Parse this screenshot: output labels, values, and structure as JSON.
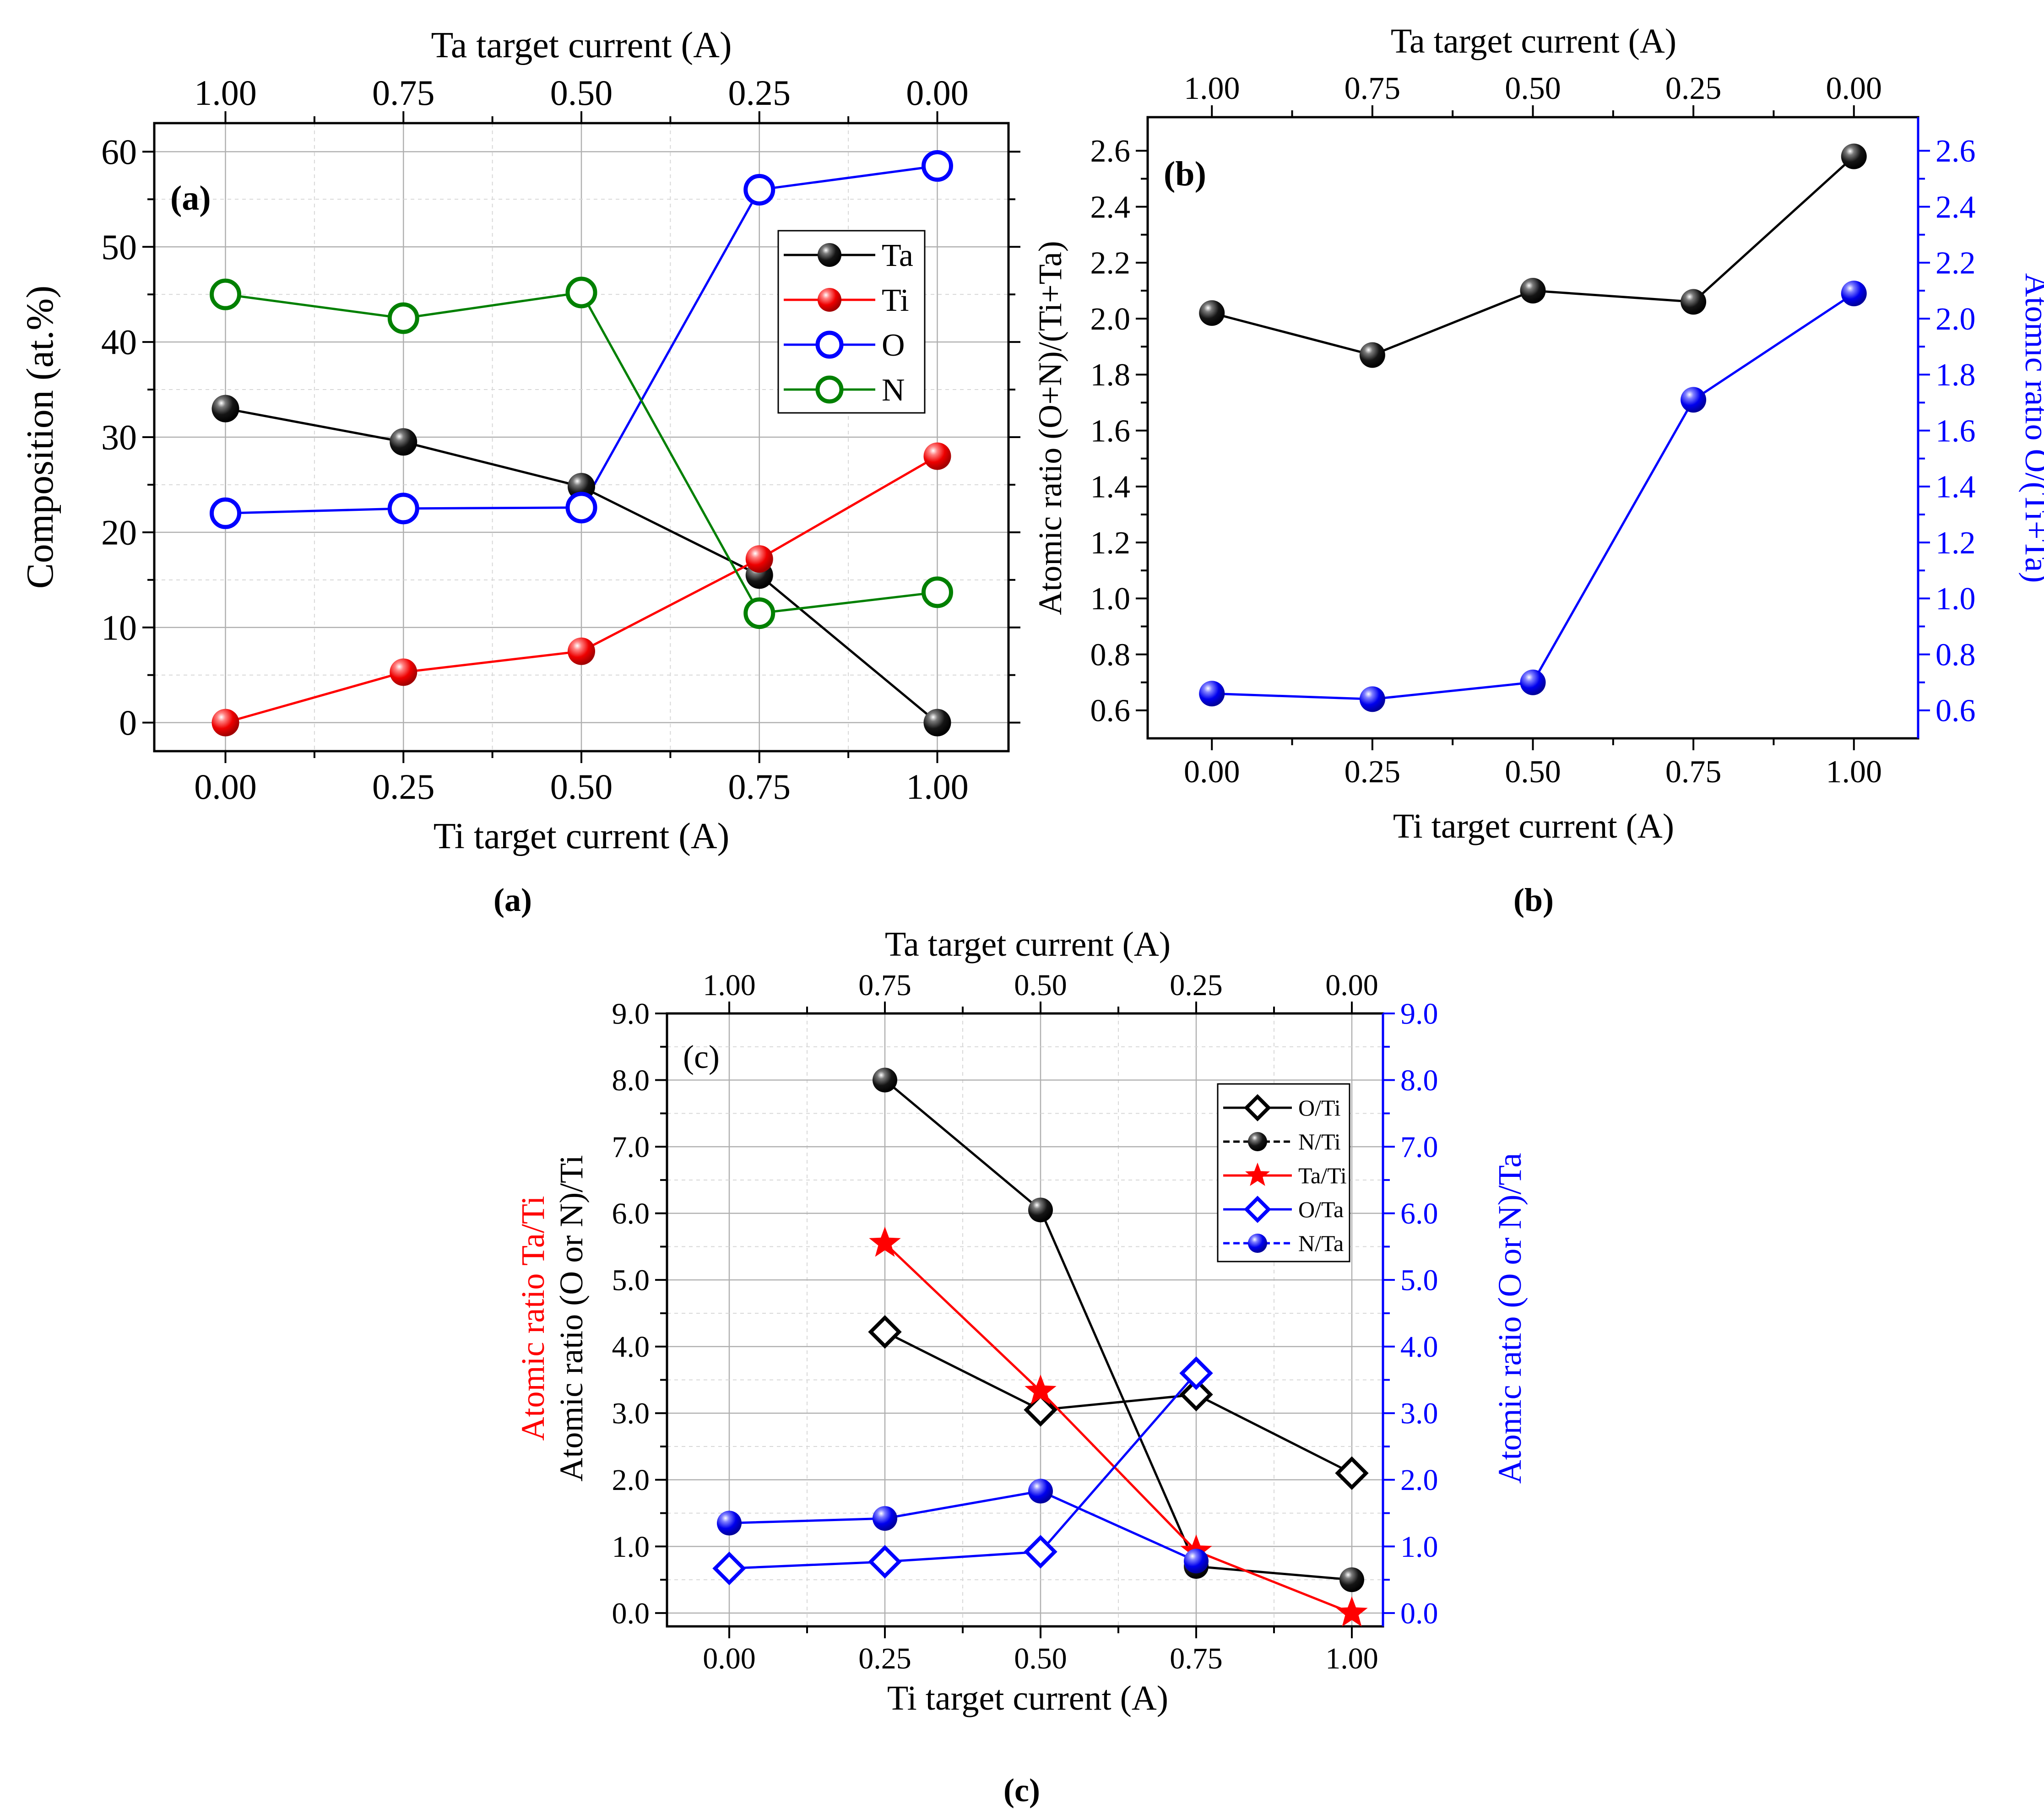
{
  "panel_captions": [
    "(a)",
    "(b)",
    "(c)"
  ],
  "chart_data": [
    {
      "id": "a",
      "type": "line",
      "panel_label": "(a)",
      "xlabel": "Ti target current (A)",
      "x2label": "Ta target current (A)",
      "ylabel": "Composition (at.%)",
      "xticks": [
        "0.00",
        "0.25",
        "0.50",
        "0.75",
        "1.00"
      ],
      "x2ticks": [
        "1.00",
        "0.75",
        "0.50",
        "0.25",
        "0.00"
      ],
      "yticks": [
        "0",
        "10",
        "20",
        "30",
        "40",
        "50",
        "60"
      ],
      "xlim": [
        -0.1,
        1.1
      ],
      "ylim": [
        -3,
        63
      ],
      "grid": true,
      "legend_position": "top-right",
      "series": [
        {
          "name": "Ta",
          "color": "#000000",
          "marker": "ball-filled",
          "x": [
            0,
            0.25,
            0.5,
            0.75,
            1.0
          ],
          "values": [
            33.0,
            29.5,
            24.8,
            15.5,
            0.0
          ]
        },
        {
          "name": "Ti",
          "color": "#ff0000",
          "marker": "ball-filled",
          "x": [
            0,
            0.25,
            0.5,
            0.75,
            1.0
          ],
          "values": [
            0.0,
            5.3,
            7.5,
            17.2,
            28.0
          ]
        },
        {
          "name": "O",
          "color": "#0000ff",
          "marker": "circle-open",
          "x": [
            0,
            0.25,
            0.5,
            0.75,
            1.0
          ],
          "values": [
            22.0,
            22.5,
            22.6,
            56.0,
            58.5
          ]
        },
        {
          "name": "N",
          "color": "#008000",
          "marker": "circle-open",
          "x": [
            0,
            0.25,
            0.5,
            0.75,
            1.0
          ],
          "values": [
            45.0,
            42.5,
            45.2,
            11.5,
            13.7
          ]
        }
      ]
    },
    {
      "id": "b",
      "type": "line",
      "panel_label": "(b)",
      "xlabel": "Ti target current (A)",
      "x2label": "Ta target current (A)",
      "ylabel": "Atomic ratio (O+N)/(Ti+Ta)",
      "y2label": "Atomic ratio O/(Ti+Ta)",
      "xticks": [
        "0.00",
        "0.25",
        "0.50",
        "0.75",
        "1.00"
      ],
      "x2ticks": [
        "1.00",
        "0.75",
        "0.50",
        "0.25",
        "0.00"
      ],
      "yticks": [
        "0.6",
        "0.8",
        "1.0",
        "1.2",
        "1.4",
        "1.6",
        "1.8",
        "2.0",
        "2.2",
        "2.4",
        "2.6"
      ],
      "y2ticks": [
        "0.6",
        "0.8",
        "1.0",
        "1.2",
        "1.4",
        "1.6",
        "1.8",
        "2.0",
        "2.2",
        "2.4",
        "2.6"
      ],
      "xlim": [
        -0.1,
        1.1
      ],
      "ylim": [
        0.5,
        2.72
      ],
      "grid": false,
      "series": [
        {
          "name": "(O+N)/(Ti+Ta)",
          "axis": "left",
          "color": "#000000",
          "marker": "ball-filled",
          "x": [
            0,
            0.25,
            0.5,
            0.75,
            1.0
          ],
          "values": [
            2.02,
            1.87,
            2.1,
            2.06,
            2.58
          ]
        },
        {
          "name": "O/(Ti+Ta)",
          "axis": "right",
          "color": "#0000ff",
          "marker": "ball-filled",
          "x": [
            0,
            0.25,
            0.5,
            0.75,
            1.0
          ],
          "values": [
            0.66,
            0.64,
            0.7,
            1.71,
            2.09
          ]
        }
      ]
    },
    {
      "id": "c",
      "type": "line",
      "panel_label": "(c)",
      "xlabel": "Ti target current (A)",
      "x2label": "Ta target current (A)",
      "ylabel": "Atomic ratio (O or N)/Ti",
      "ylabel_red": "Atomic ratio Ta/Ti",
      "y2label": "Atomic ratio (O or N)/Ta",
      "xticks": [
        "0.00",
        "0.25",
        "0.50",
        "0.75",
        "1.00"
      ],
      "x2ticks": [
        "1.00",
        "0.75",
        "0.50",
        "0.25",
        "0.00"
      ],
      "yticks": [
        "0.0",
        "1.0",
        "2.0",
        "3.0",
        "4.0",
        "5.0",
        "6.0",
        "7.0",
        "8.0",
        "9.0"
      ],
      "y2ticks": [
        "0.0",
        "1.0",
        "2.0",
        "3.0",
        "4.0",
        "5.0",
        "6.0",
        "7.0",
        "8.0",
        "9.0"
      ],
      "xlim": [
        -0.1,
        1.05
      ],
      "ylim": [
        -0.2,
        9.0
      ],
      "grid": true,
      "legend_position": "top-right",
      "series": [
        {
          "name": "O/Ti",
          "color": "#000000",
          "marker": "diamond-open",
          "x": [
            0.25,
            0.5,
            0.75,
            1.0
          ],
          "values": [
            4.22,
            3.05,
            3.28,
            2.1
          ]
        },
        {
          "name": "N/Ti",
          "color": "#000000",
          "marker": "ball-filled",
          "x": [
            0.25,
            0.5,
            0.75,
            1.0
          ],
          "values": [
            8.0,
            6.05,
            0.7,
            0.5
          ]
        },
        {
          "name": "Ta/Ti",
          "color": "#ff0000",
          "marker": "star",
          "x": [
            0.25,
            0.5,
            0.75,
            1.0
          ],
          "values": [
            5.55,
            3.33,
            0.93,
            0.0
          ]
        },
        {
          "name": "O/Ta",
          "color": "#0000ff",
          "marker": "diamond-open",
          "x": [
            0,
            0.25,
            0.5,
            0.75
          ],
          "values": [
            0.67,
            0.77,
            0.92,
            3.6
          ]
        },
        {
          "name": "N/Ta",
          "color": "#0000ff",
          "marker": "ball-filled",
          "x": [
            0,
            0.25,
            0.5,
            0.75
          ],
          "values": [
            1.35,
            1.42,
            1.83,
            0.78
          ]
        }
      ]
    }
  ]
}
